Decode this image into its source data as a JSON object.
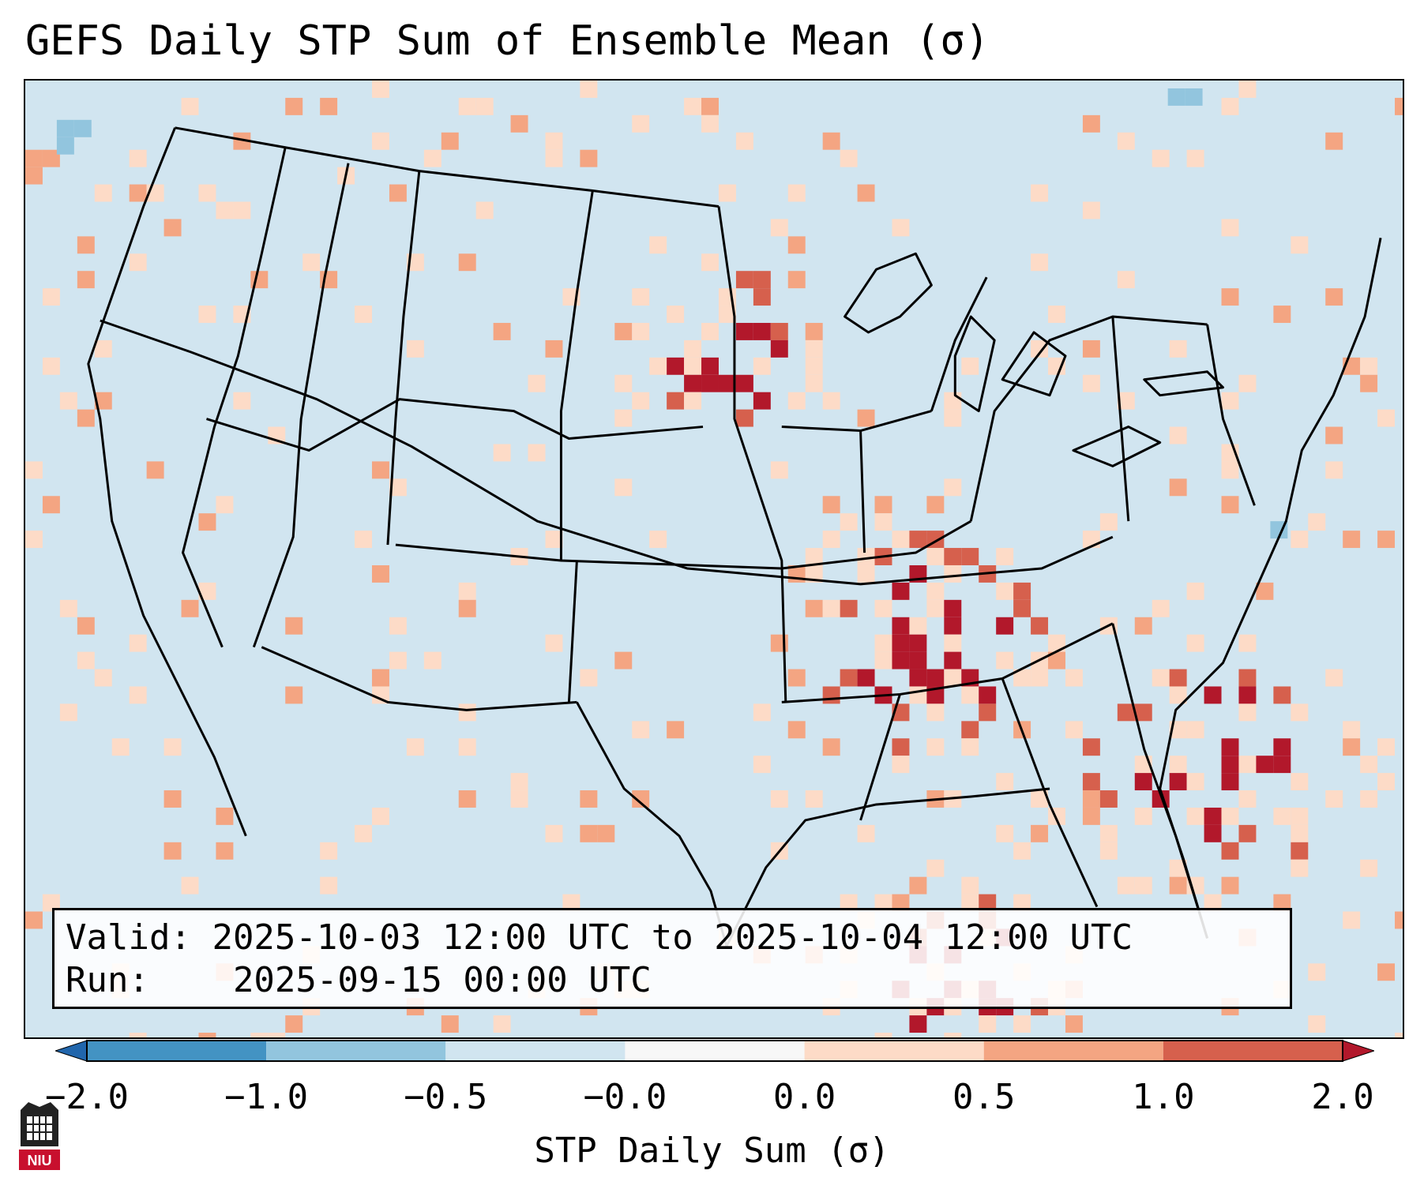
{
  "title": "GEFS Daily STP Sum of Ensemble Mean (σ)",
  "info": {
    "valid_label": "Valid:",
    "valid_value": "2025-10-03 12:00 UTC to 2025-10-04 12:00 UTC",
    "run_label": "Run:",
    "run_value": "2025-09-15 00:00 UTC"
  },
  "colorbar": {
    "label": "STP Daily Sum (σ)",
    "ticks": [
      "−2.0",
      "−1.0",
      "−0.5",
      "−0.0",
      "0.0",
      "0.5",
      "1.0",
      "2.0"
    ],
    "colors": [
      "#2166ac",
      "#4393c3",
      "#92c5de",
      "#d1e5f0",
      "#f7f7f7",
      "#fddbc7",
      "#f4a582",
      "#d6604d",
      "#b2182b"
    ]
  },
  "logo": {
    "text": "NIU"
  }
}
